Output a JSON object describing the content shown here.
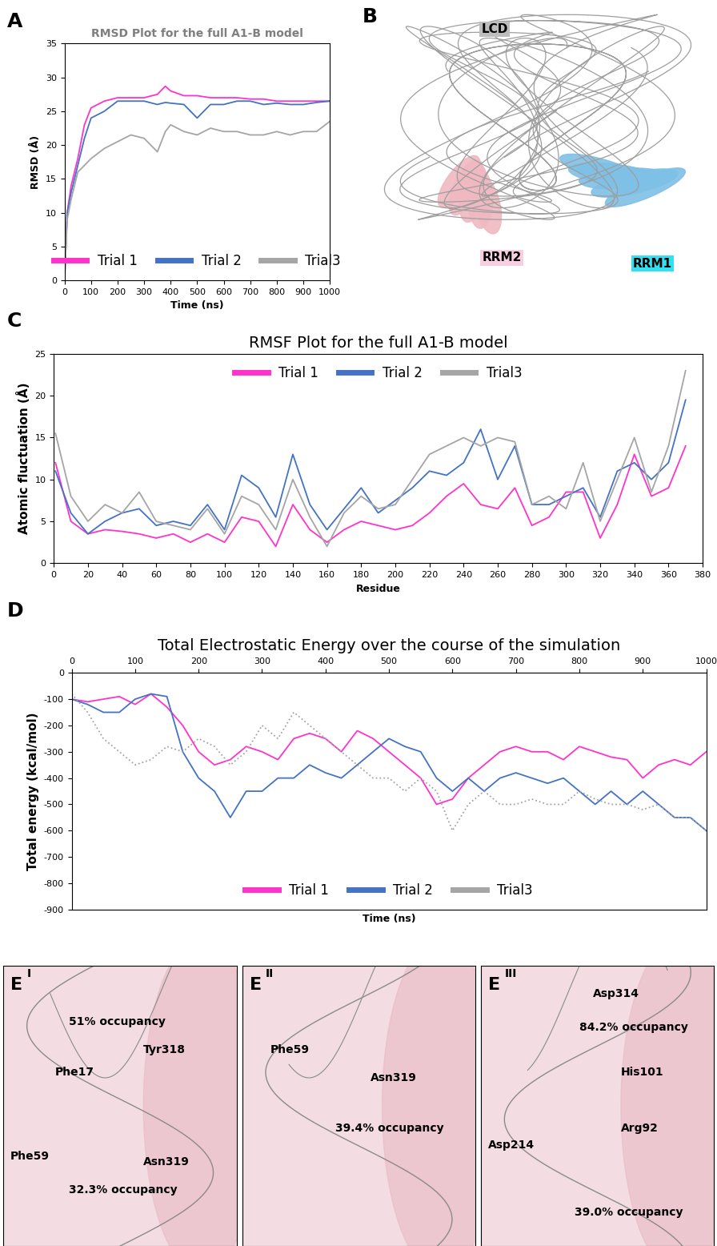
{
  "chart_data": [
    {
      "panel_label": "A",
      "type": "line",
      "title": "RMSD Plot for the full A1-B model",
      "x_label": "Time (ns)",
      "y_label": "RMSD (Å)",
      "x": [
        0,
        10,
        25,
        50,
        75,
        100,
        150,
        200,
        250,
        300,
        350,
        380,
        400,
        450,
        500,
        550,
        600,
        650,
        700,
        750,
        800,
        850,
        900,
        950,
        1000
      ],
      "series": [
        {
          "name": "Trial 1",
          "color": "#ff33cc",
          "line_style": "solid",
          "values": [
            0,
            10,
            14,
            18,
            23,
            25.5,
            26.5,
            27,
            27,
            27,
            27.5,
            28.7,
            28,
            27.3,
            27.3,
            27,
            27,
            27,
            26.8,
            26.8,
            26.5,
            26.5,
            26.5,
            26.5,
            26.5
          ]
        },
        {
          "name": "Trial 2",
          "color": "#4472c4",
          "line_style": "solid",
          "values": [
            0,
            10,
            13,
            17,
            21,
            24,
            25,
            26.5,
            26.5,
            26.5,
            26,
            26.3,
            26.2,
            26,
            24,
            26,
            26,
            26.5,
            26.5,
            26,
            26.2,
            26,
            26,
            26.3,
            26.5
          ]
        },
        {
          "name": "Trial3",
          "color": "#a5a5a5",
          "line_style": "solid",
          "values": [
            0,
            9,
            12,
            16,
            17,
            18,
            19.5,
            20.5,
            21.5,
            21,
            19,
            22,
            23,
            22,
            21.5,
            22.5,
            22,
            22,
            21.5,
            21.5,
            22,
            21.5,
            22,
            22,
            23.5
          ]
        }
      ],
      "xlim": [
        0,
        1000
      ],
      "xticks": [
        0,
        100,
        200,
        300,
        400,
        500,
        600,
        700,
        800,
        900,
        1000
      ],
      "ylim": [
        0,
        35
      ],
      "yticks": [
        0,
        5,
        10,
        15,
        20,
        25,
        30,
        35
      ],
      "legend": "lower center"
    },
    {
      "panel_label": "C",
      "type": "line",
      "title": "RMSF Plot for the full A1-B model",
      "x_label": "Residue",
      "y_label": "Atomic fluctuation (Å)",
      "x": [
        1,
        10,
        20,
        30,
        40,
        50,
        60,
        70,
        80,
        90,
        100,
        110,
        120,
        130,
        140,
        150,
        160,
        170,
        180,
        190,
        200,
        210,
        220,
        230,
        240,
        250,
        260,
        270,
        280,
        290,
        300,
        310,
        320,
        330,
        340,
        350,
        360,
        370
      ],
      "series": [
        {
          "name": "Trial 1",
          "color": "#ff33cc",
          "line_style": "solid",
          "values": [
            12,
            5,
            3.5,
            4,
            3.8,
            3.5,
            3,
            3.5,
            2.5,
            3.5,
            2.5,
            5.5,
            5,
            2,
            7,
            4,
            2.5,
            4,
            5,
            4.5,
            4,
            4.5,
            6,
            8,
            9.5,
            7,
            6.5,
            9,
            4.5,
            5.5,
            8.5,
            8.5,
            3,
            7,
            13,
            8,
            9,
            14
          ]
        },
        {
          "name": "Trial 2",
          "color": "#4472c4",
          "line_style": "solid",
          "values": [
            11,
            6,
            3.5,
            5,
            6,
            6.5,
            4.5,
            5,
            4.5,
            7,
            4,
            10.5,
            9,
            5.5,
            13,
            7,
            4,
            6.5,
            9,
            6,
            7.5,
            9,
            11,
            10.5,
            12,
            16,
            10,
            14,
            7,
            7,
            8,
            9,
            5.5,
            11,
            12,
            10,
            12,
            19.5
          ]
        },
        {
          "name": "Trial3",
          "color": "#a5a5a5",
          "line_style": "solid",
          "values": [
            15.5,
            8,
            5,
            7,
            6,
            8.5,
            5,
            4.5,
            4,
            6.5,
            3.5,
            8,
            7,
            4,
            10,
            5.5,
            2,
            6,
            8,
            6.5,
            7,
            10,
            13,
            14,
            15,
            14,
            15,
            14.5,
            7,
            8,
            6.5,
            12,
            5,
            10,
            15,
            8.5,
            14,
            23
          ]
        }
      ],
      "xlim": [
        0,
        380
      ],
      "xticks": [
        0,
        20,
        40,
        60,
        80,
        100,
        120,
        140,
        160,
        180,
        200,
        220,
        240,
        260,
        280,
        300,
        320,
        340,
        360,
        380
      ],
      "ylim": [
        0,
        25
      ],
      "yticks": [
        0,
        5,
        10,
        15,
        20,
        25
      ],
      "legend": "upper center"
    },
    {
      "panel_label": "D",
      "type": "line",
      "title": "Total Electrostatic Energy over the course of the simulation",
      "x_label": "Time (ns)",
      "y_label": "Total energy (kcal/mol)",
      "x": [
        0,
        25,
        50,
        75,
        100,
        125,
        150,
        175,
        200,
        225,
        250,
        275,
        300,
        325,
        350,
        375,
        400,
        425,
        450,
        475,
        500,
        525,
        550,
        575,
        600,
        625,
        650,
        675,
        700,
        725,
        750,
        775,
        800,
        825,
        850,
        875,
        900,
        925,
        950,
        975,
        1000
      ],
      "series": [
        {
          "name": "Trial 1",
          "color": "#ff33cc",
          "line_style": "solid",
          "values": [
            -100,
            -110,
            -100,
            -90,
            -120,
            -80,
            -130,
            -200,
            -300,
            -350,
            -330,
            -280,
            -300,
            -330,
            -250,
            -230,
            -250,
            -300,
            -220,
            -250,
            -300,
            -350,
            -400,
            -500,
            -480,
            -400,
            -350,
            -300,
            -280,
            -300,
            -300,
            -330,
            -280,
            -300,
            -320,
            -330,
            -400,
            -350,
            -330,
            -350,
            -300
          ]
        },
        {
          "name": "Trial 2",
          "color": "#4472c4",
          "line_style": "solid",
          "values": [
            -100,
            -120,
            -150,
            -150,
            -100,
            -80,
            -90,
            -300,
            -400,
            -450,
            -550,
            -450,
            -450,
            -400,
            -400,
            -350,
            -380,
            -400,
            -350,
            -300,
            -250,
            -280,
            -300,
            -400,
            -450,
            -400,
            -450,
            -400,
            -380,
            -400,
            -420,
            -400,
            -450,
            -500,
            -450,
            -500,
            -450,
            -500,
            -550,
            -550,
            -600
          ]
        },
        {
          "name": "Trial3",
          "color": "#a5a5a5",
          "line_style": "dotted",
          "values": [
            -80,
            -150,
            -250,
            -300,
            -350,
            -330,
            -280,
            -300,
            -250,
            -280,
            -350,
            -300,
            -200,
            -250,
            -150,
            -200,
            -250,
            -300,
            -350,
            -400,
            -400,
            -450,
            -400,
            -450,
            -600,
            -500,
            -450,
            -500,
            -500,
            -480,
            -500,
            -500,
            -450,
            -480,
            -500,
            -500,
            -520,
            -500,
            -550,
            -550,
            -600
          ]
        }
      ],
      "xlim": [
        0,
        1000
      ],
      "xticks": [
        0,
        100,
        200,
        300,
        400,
        500,
        600,
        700,
        800,
        900,
        1000
      ],
      "ylim": [
        -900,
        0
      ],
      "yticks": [
        -900,
        -800,
        -700,
        -600,
        -500,
        -400,
        -300,
        -200,
        -100,
        0
      ],
      "legend": "lower center"
    }
  ],
  "structure_panel": {
    "panel_label": "B",
    "domains": [
      "LCD",
      "RRM2",
      "RRM1"
    ]
  },
  "interaction_panels": [
    {
      "panel_label": "E",
      "superscript": "I",
      "labels": [
        "51% occupancy",
        "Phe17",
        "Tyr318",
        "Phe59",
        "Asn319",
        "32.3% occupancy"
      ]
    },
    {
      "panel_label": "E",
      "superscript": "II",
      "labels": [
        "Phe59",
        "Asn319",
        "39.4% occupancy"
      ]
    },
    {
      "panel_label": "E",
      "superscript": "III",
      "labels": [
        "Asp314",
        "84.2% occupancy",
        "His101",
        "Arg92",
        "Asp214",
        "39.0% occupancy"
      ]
    }
  ]
}
